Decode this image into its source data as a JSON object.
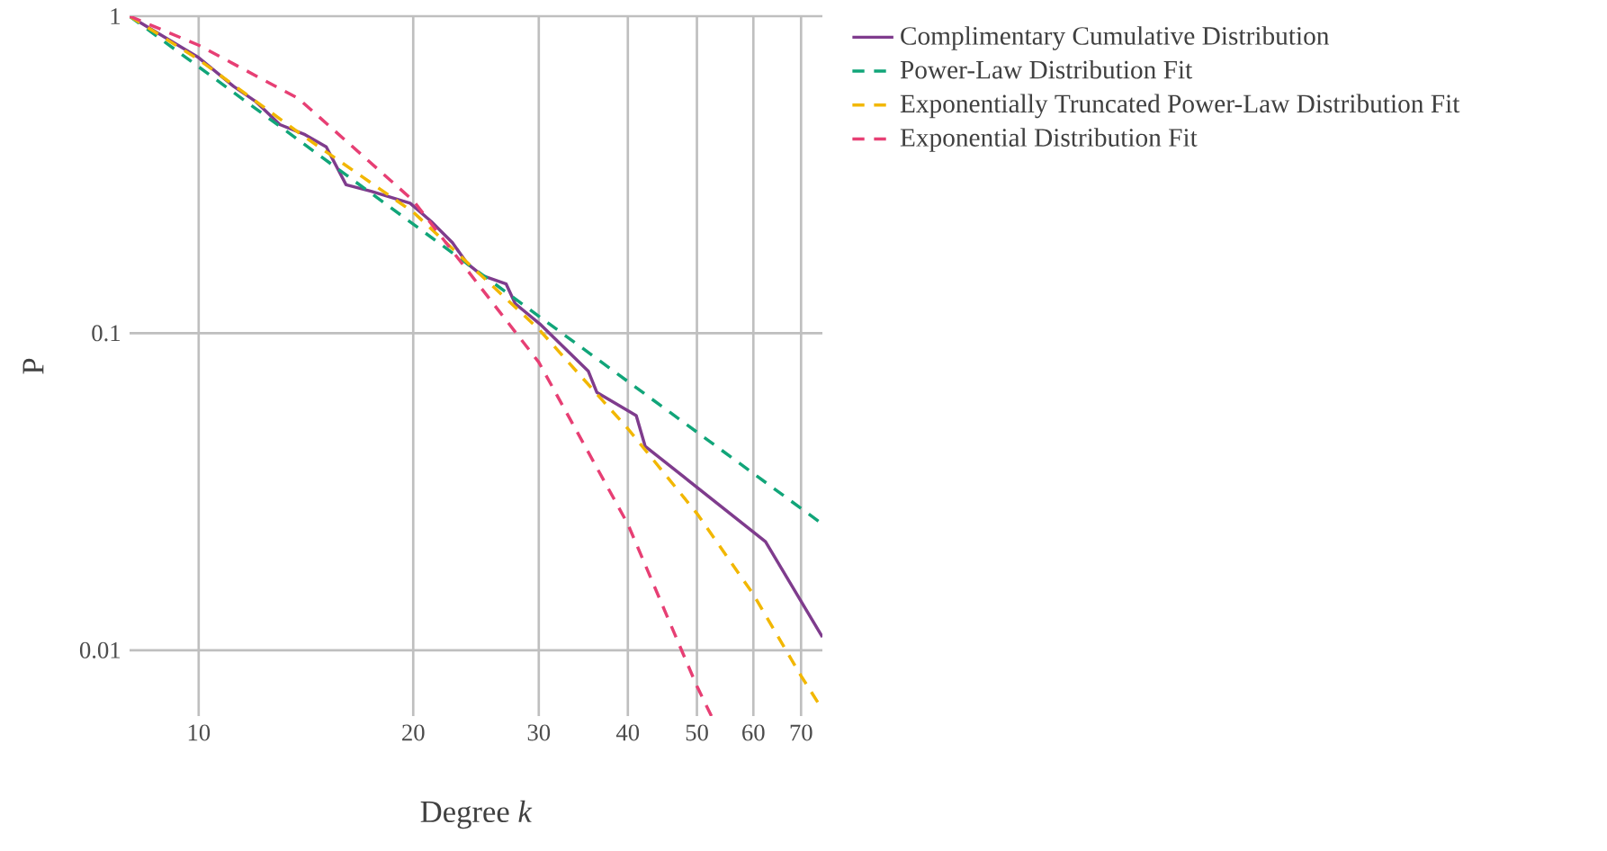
{
  "chart_data": {
    "type": "line",
    "xlabel": "Degree *k*",
    "ylabel": "P",
    "log": "xy",
    "grid": true,
    "legend": "right",
    "xlim": [
      8,
      75
    ],
    "ylim": [
      0.0062,
      1
    ],
    "xticks": [
      10,
      20,
      30,
      40,
      50,
      60,
      70
    ],
    "yticks": [
      0.01,
      0.1,
      1
    ],
    "series": [
      {
        "name": "Complimentary Cumulative Distribution",
        "color": "#7f3c8d",
        "line_style": "solid",
        "x": [
          8,
          10,
          11.2,
          12,
          13,
          14.1,
          15.1,
          16.1,
          17.5,
          19.8,
          21.2,
          22.7,
          23.8,
          25,
          27,
          27.8,
          30.1,
          35.2,
          36.2,
          41.1,
          42.3,
          62.4,
          75
        ],
        "values": [
          1,
          0.74,
          0.6,
          0.54,
          0.455,
          0.423,
          0.387,
          0.294,
          0.28,
          0.257,
          0.225,
          0.193,
          0.166,
          0.152,
          0.143,
          0.124,
          0.107,
          0.076,
          0.065,
          0.055,
          0.044,
          0.022,
          0.011
        ]
      },
      {
        "name": "Power-Law Distribution Fit",
        "color": "#11a579",
        "line_style": "dashed",
        "x": [
          8,
          75
        ],
        "values": [
          1,
          0.025
        ]
      },
      {
        "name": "Exponentially Truncated Power-Law Distribution Fit",
        "color": "#f2b701",
        "line_style": "dashed",
        "x": [
          8,
          10,
          14,
          20,
          30,
          40,
          50,
          60,
          70,
          75
        ],
        "values": [
          1,
          0.73,
          0.42,
          0.241,
          0.103,
          0.05,
          0.027,
          0.015,
          0.0083,
          0.0065
        ]
      },
      {
        "name": "Exponential Distribution Fit",
        "color": "#e73f74",
        "line_style": "dashed",
        "x": [
          8,
          10,
          13.8,
          20,
          30,
          40,
          50,
          52.4
        ],
        "values": [
          1,
          0.81,
          0.55,
          0.262,
          0.081,
          0.025,
          0.0077,
          0.0062
        ]
      }
    ]
  }
}
